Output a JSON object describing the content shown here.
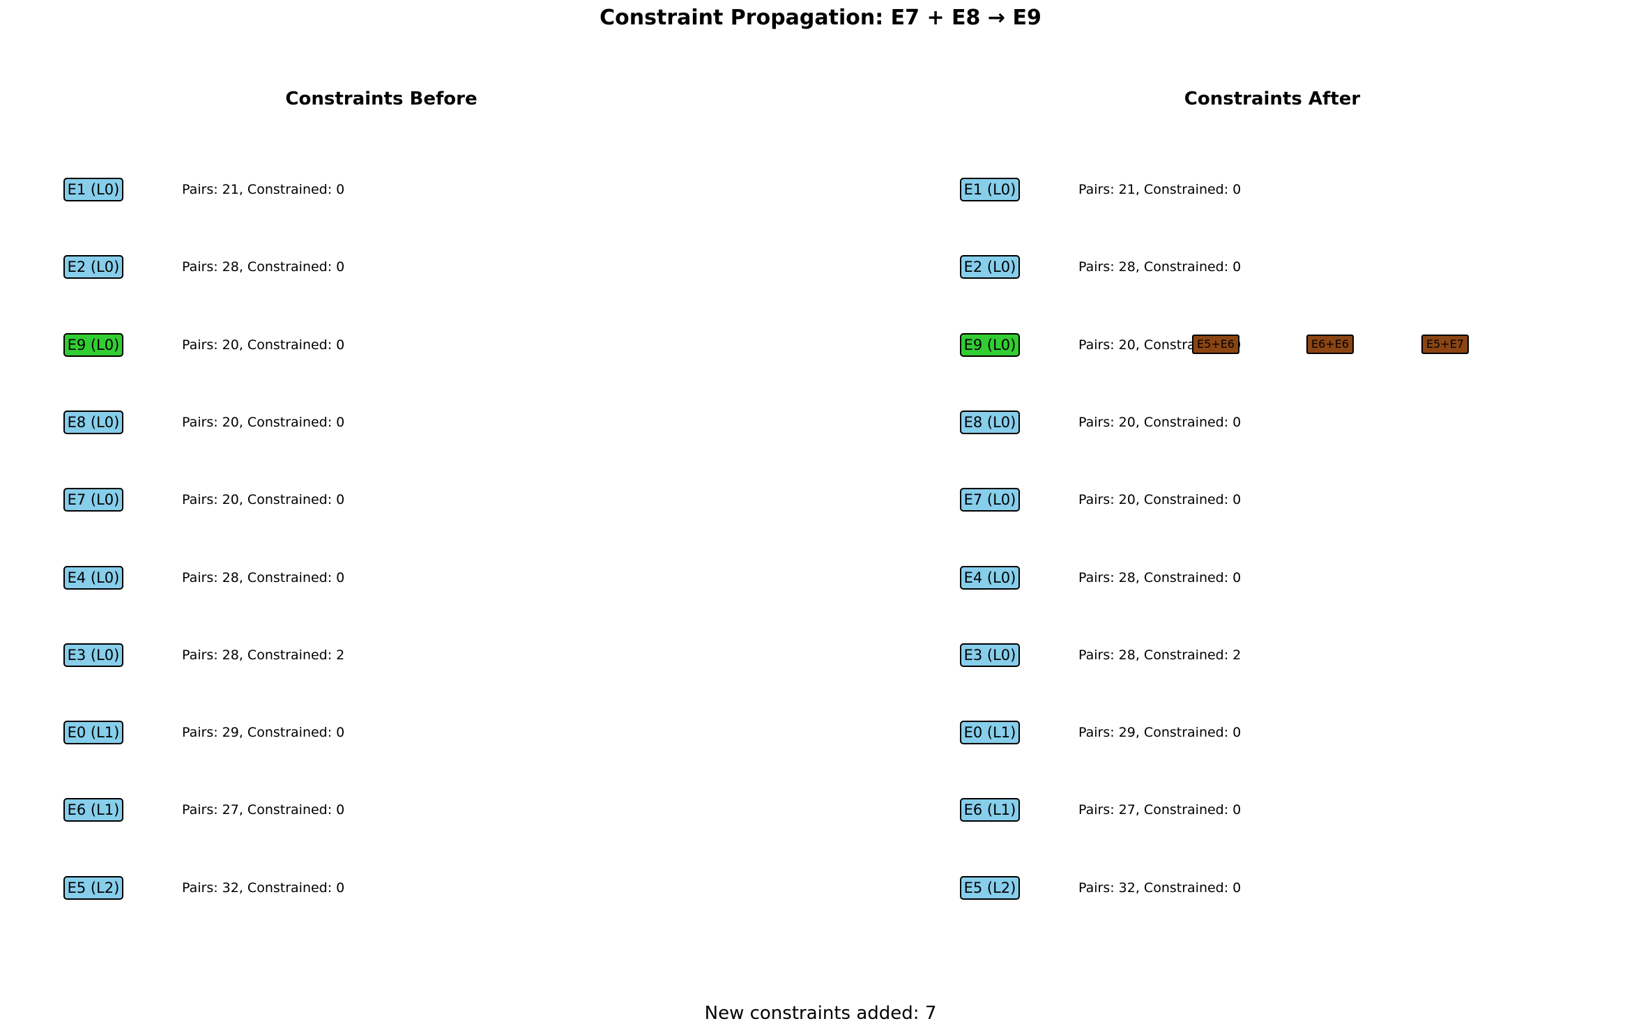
{
  "title": "Constraint Propagation: E7 + E8 → E9",
  "colors": {
    "default_node": "#87CEEB",
    "highlight_node": "#32CD32",
    "new_constraint": "#8B4513"
  },
  "before": {
    "title": "Constraints Before",
    "rows": [
      {
        "node": "E1 (L0)",
        "stats": "Pairs: 21, Constrained: 0",
        "highlight": false
      },
      {
        "node": "E2 (L0)",
        "stats": "Pairs: 28, Constrained: 0",
        "highlight": false
      },
      {
        "node": "E9 (L0)",
        "stats": "Pairs: 20, Constrained: 0",
        "highlight": true
      },
      {
        "node": "E8 (L0)",
        "stats": "Pairs: 20, Constrained: 0",
        "highlight": false
      },
      {
        "node": "E7 (L0)",
        "stats": "Pairs: 20, Constrained: 0",
        "highlight": false
      },
      {
        "node": "E4 (L0)",
        "stats": "Pairs: 28, Constrained: 0",
        "highlight": false
      },
      {
        "node": "E3 (L0)",
        "stats": "Pairs: 28, Constrained: 2",
        "highlight": false
      },
      {
        "node": "E0 (L1)",
        "stats": "Pairs: 29, Constrained: 0",
        "highlight": false
      },
      {
        "node": "E6 (L1)",
        "stats": "Pairs: 27, Constrained: 0",
        "highlight": false
      },
      {
        "node": "E5 (L2)",
        "stats": "Pairs: 32, Constrained: 0",
        "highlight": false
      }
    ]
  },
  "after": {
    "title": "Constraints After",
    "rows": [
      {
        "node": "E1 (L0)",
        "stats": "Pairs: 21, Constrained: 0",
        "highlight": false,
        "tags": []
      },
      {
        "node": "E2 (L0)",
        "stats": "Pairs: 28, Constrained: 0",
        "highlight": false,
        "tags": []
      },
      {
        "node": "E9 (L0)",
        "stats": "Pairs: 20, Constrained: 0",
        "highlight": true,
        "tags": [
          "E5+E6",
          "E6+E6",
          "E5+E7"
        ]
      },
      {
        "node": "E8 (L0)",
        "stats": "Pairs: 20, Constrained: 0",
        "highlight": false,
        "tags": []
      },
      {
        "node": "E7 (L0)",
        "stats": "Pairs: 20, Constrained: 0",
        "highlight": false,
        "tags": []
      },
      {
        "node": "E4 (L0)",
        "stats": "Pairs: 28, Constrained: 0",
        "highlight": false,
        "tags": []
      },
      {
        "node": "E3 (L0)",
        "stats": "Pairs: 28, Constrained: 2",
        "highlight": false,
        "tags": []
      },
      {
        "node": "E0 (L1)",
        "stats": "Pairs: 29, Constrained: 0",
        "highlight": false,
        "tags": []
      },
      {
        "node": "E6 (L1)",
        "stats": "Pairs: 27, Constrained: 0",
        "highlight": false,
        "tags": []
      },
      {
        "node": "E5 (L2)",
        "stats": "Pairs: 32, Constrained: 0",
        "highlight": false,
        "tags": []
      }
    ]
  },
  "footer": "New constraints added: 7"
}
